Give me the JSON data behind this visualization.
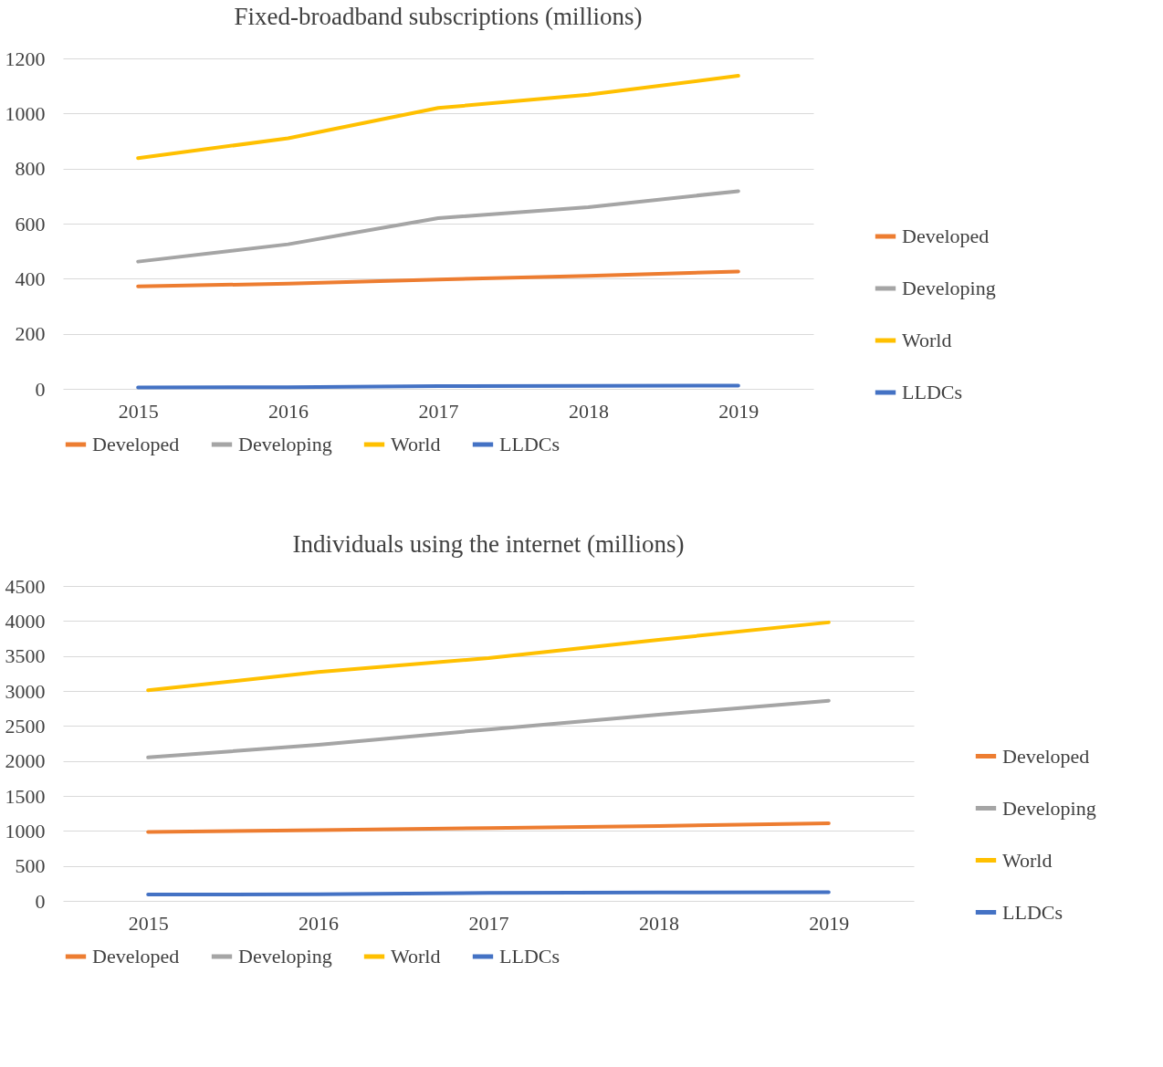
{
  "chart_data": [
    {
      "type": "line",
      "title": "Fixed-broadband subscriptions (millions)",
      "categories": [
        "2015",
        "2016",
        "2017",
        "2018",
        "2019"
      ],
      "ylim": [
        0,
        1200
      ],
      "yticks": [
        0,
        200,
        400,
        600,
        800,
        1000,
        1200
      ],
      "grid": "y",
      "legend": [
        "right",
        "bottom"
      ],
      "series": [
        {
          "name": "Developed",
          "color": "#ed7d31",
          "values": [
            372,
            382,
            397,
            410,
            426
          ]
        },
        {
          "name": "Developing",
          "color": "#a5a5a5",
          "values": [
            462,
            525,
            620,
            660,
            718
          ]
        },
        {
          "name": "World",
          "color": "#ffc000",
          "values": [
            838,
            910,
            1020,
            1068,
            1137
          ]
        },
        {
          "name": "LLDCs",
          "color": "#4472c4",
          "values": [
            5,
            6,
            10,
            11,
            12
          ]
        }
      ]
    },
    {
      "type": "line",
      "title": "Individuals using the internet (millions)",
      "categories": [
        "2015",
        "2016",
        "2017",
        "2018",
        "2019"
      ],
      "ylim": [
        0,
        4500
      ],
      "yticks": [
        0,
        500,
        1000,
        1500,
        2000,
        2500,
        3000,
        3500,
        4000,
        4500
      ],
      "grid": "y",
      "legend": [
        "right",
        "bottom"
      ],
      "series": [
        {
          "name": "Developed",
          "color": "#ed7d31",
          "values": [
            985,
            1010,
            1040,
            1070,
            1110
          ]
        },
        {
          "name": "Developing",
          "color": "#a5a5a5",
          "values": [
            2050,
            2230,
            2450,
            2660,
            2860
          ]
        },
        {
          "name": "World",
          "color": "#ffc000",
          "values": [
            3010,
            3270,
            3470,
            3730,
            3980
          ]
        },
        {
          "name": "LLDCs",
          "color": "#4472c4",
          "values": [
            90,
            95,
            115,
            120,
            125
          ]
        }
      ]
    }
  ]
}
